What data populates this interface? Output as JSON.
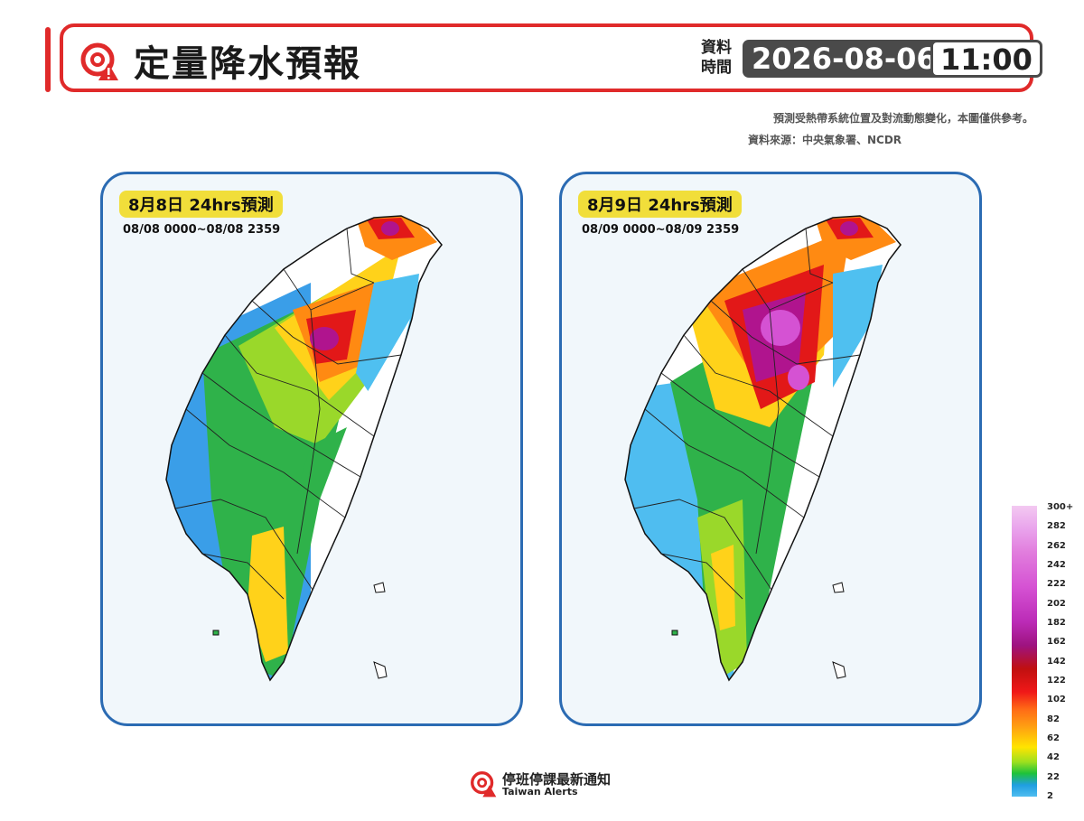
{
  "header": {
    "title": "定量降水預報",
    "time_label": "資料時間",
    "date": "2026-08-06",
    "time": "11:00",
    "accent_color": "#e02a2a"
  },
  "notes": {
    "disclaimer": "預測受熱帶系統位置及對流動態變化，本圖僅供參考。",
    "source": "資料來源：中央氣象署、NCDR"
  },
  "maps": [
    {
      "title": "8月8日 24hrs預測",
      "range": "08/08 0000~08/08 2359"
    },
    {
      "title": "8月9日 24hrs預測",
      "range": "08/09 0000~08/09 2359"
    }
  ],
  "legend": {
    "labels": [
      "300+",
      "282",
      "262",
      "242",
      "222",
      "202",
      "182",
      "162",
      "142",
      "122",
      "102",
      "82",
      "62",
      "42",
      "22",
      "2"
    ]
  },
  "footer": {
    "name_cn": "停班停課最新通知",
    "name_en": "Taiwan Alerts"
  }
}
